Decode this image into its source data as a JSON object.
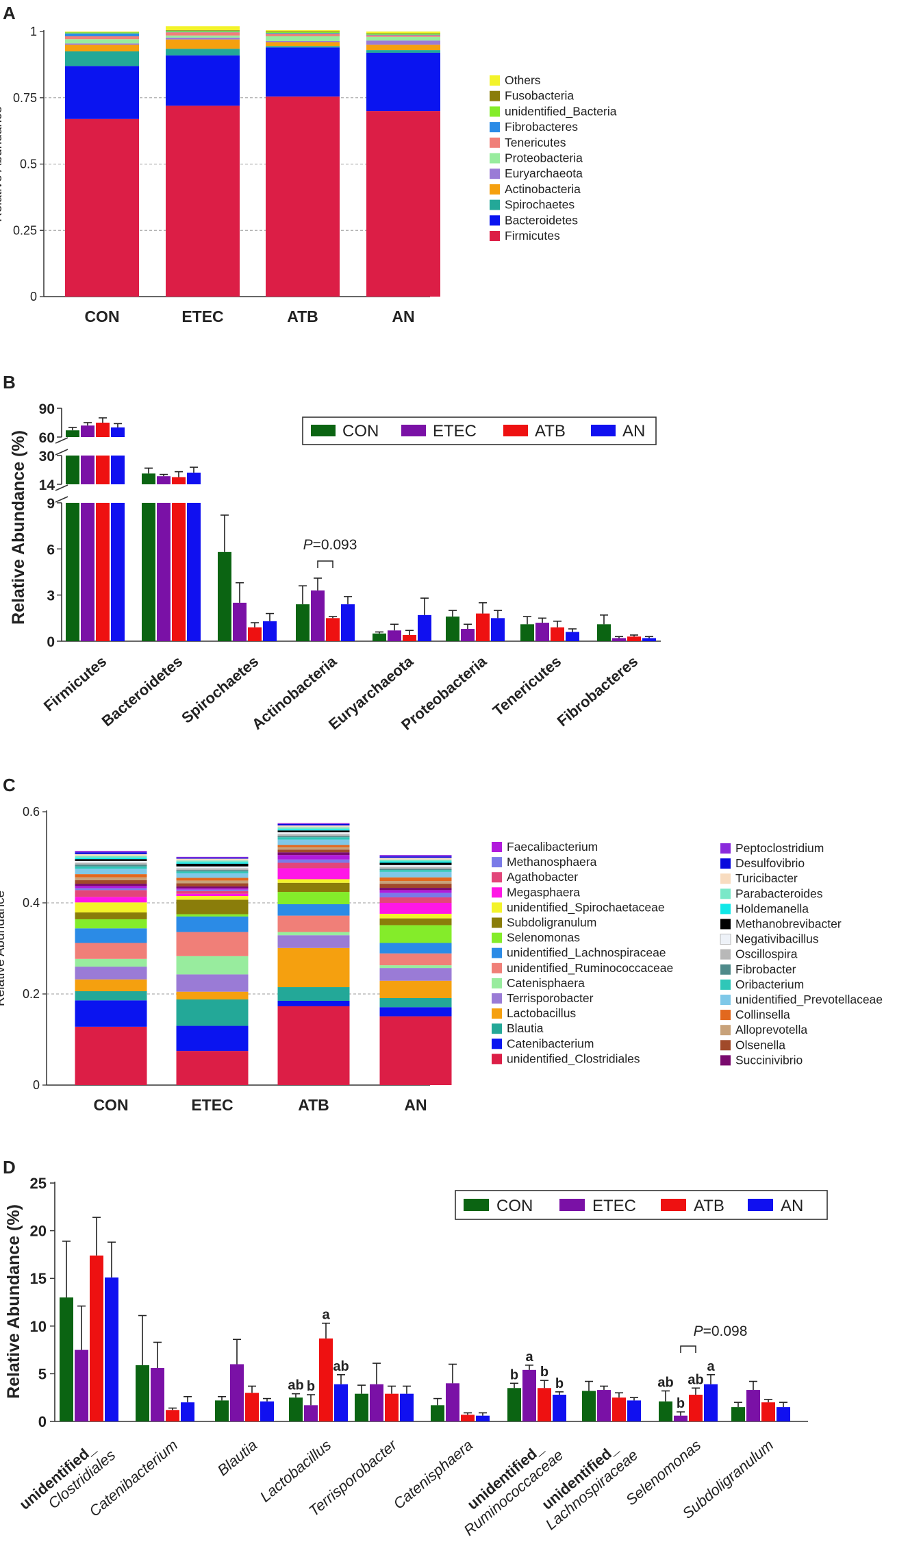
{
  "figure": {
    "panel_labels": [
      "A",
      "B",
      "C",
      "D"
    ]
  },
  "chart_data": [
    {
      "panel": "A",
      "type": "bar",
      "stacked": true,
      "title": "",
      "xlabel": "",
      "ylabel": "Relative Abundance",
      "ylim": [
        0,
        1
      ],
      "yticks": [
        "0",
        "0.25",
        "0.5",
        "0.75",
        "1"
      ],
      "grid": "dashed horizontal",
      "legend_position": "right",
      "categories": [
        "CON",
        "ETEC",
        "ATB",
        "AN"
      ],
      "series": [
        {
          "name": "Firmicutes",
          "color": "#dc1e46",
          "values": [
            0.67,
            0.72,
            0.755,
            0.7
          ]
        },
        {
          "name": "Bacteroidetes",
          "color": "#0a14f0",
          "values": [
            0.2,
            0.19,
            0.185,
            0.22
          ]
        },
        {
          "name": "Spirochaetes",
          "color": "#23a898",
          "values": [
            0.055,
            0.025,
            0.005,
            0.01
          ]
        },
        {
          "name": "Actinobacteria",
          "color": "#f5a00f",
          "values": [
            0.025,
            0.035,
            0.015,
            0.02
          ]
        },
        {
          "name": "Euryarchaeota",
          "color": "#9a7bd6",
          "values": [
            0.005,
            0.007,
            0.004,
            0.016
          ]
        },
        {
          "name": "Proteobacteria",
          "color": "#98ec9e",
          "values": [
            0.016,
            0.008,
            0.018,
            0.014
          ]
        },
        {
          "name": "Tenericutes",
          "color": "#f07f78",
          "values": [
            0.011,
            0.012,
            0.009,
            0.006
          ]
        },
        {
          "name": "Fibrobacteres",
          "color": "#2b8be6",
          "values": [
            0.011,
            0.002,
            0.003,
            0.002
          ]
        },
        {
          "name": "unidentified_Bacteria",
          "color": "#84ec2a",
          "values": [
            0.004,
            0.004,
            0.004,
            0.004
          ]
        },
        {
          "name": "Fusobacteria",
          "color": "#8a7d0a",
          "values": [
            0.001,
            0.002,
            0.003,
            0.002
          ]
        },
        {
          "name": "Others",
          "color": "#f3f32a",
          "values": [
            0.002,
            0.015,
            0.004,
            0.006
          ]
        }
      ],
      "legend": [
        "Others",
        "Fusobacteria",
        "unidentified_Bacteria",
        "Fibrobacteres",
        "Tenericutes",
        "Proteobacteria",
        "Euryarchaeota",
        "Actinobacteria",
        "Spirochaetes",
        "Bacteroidetes",
        "Firmicutes"
      ]
    },
    {
      "panel": "B",
      "type": "bar",
      "grouped": true,
      "broken_axis": true,
      "title": "",
      "xlabel": "",
      "ylabel": "Relative Abundance (%)",
      "ylim": [
        0,
        90
      ],
      "yticks": [
        "0",
        "3",
        "6",
        "9",
        "14",
        "30",
        "60",
        "90"
      ],
      "legend_position": "top-right",
      "groups": [
        "CON",
        "ETEC",
        "ATB",
        "AN"
      ],
      "group_colors": [
        "#0b6412",
        "#7a11a6",
        "#ee1111",
        "#1010f0"
      ],
      "categories": [
        "Firmicutes",
        "Bacteroidetes",
        "Spirochaetes",
        "Actinobacteria",
        "Euryarchaeota",
        "Proteobacteria",
        "Tenericutes",
        "Fibrobacteres"
      ],
      "series": [
        {
          "name": "CON",
          "values": [
            67.0,
            20.0,
            5.8,
            2.4,
            0.5,
            1.6,
            1.1,
            1.1
          ],
          "errors": [
            3.0,
            3.0,
            2.4,
            1.2,
            0.1,
            0.4,
            0.5,
            0.6
          ]
        },
        {
          "name": "ETEC",
          "values": [
            72.0,
            18.5,
            2.5,
            3.3,
            0.7,
            0.8,
            1.2,
            0.2
          ],
          "errors": [
            3.0,
            1.0,
            1.3,
            0.8,
            0.4,
            0.3,
            0.3,
            0.1
          ]
        },
        {
          "name": "ATB",
          "values": [
            75.0,
            18.0,
            0.9,
            1.5,
            0.4,
            1.8,
            0.9,
            0.3
          ],
          "errors": [
            5.0,
            3.0,
            0.3,
            0.1,
            0.3,
            0.7,
            0.4,
            0.1
          ]
        },
        {
          "name": "AN",
          "values": [
            70.0,
            20.5,
            1.3,
            2.4,
            1.7,
            1.5,
            0.6,
            0.2
          ],
          "errors": [
            4.0,
            3.0,
            0.5,
            0.5,
            1.1,
            0.5,
            0.2,
            0.1
          ]
        }
      ],
      "annotation": {
        "prefix": "P",
        "text": "=0.093"
      }
    },
    {
      "panel": "C",
      "type": "bar",
      "stacked": true,
      "title": "",
      "xlabel": "",
      "ylabel": "Relative Abundance",
      "ylim": [
        0,
        0.6
      ],
      "yticks": [
        "0",
        "0.2",
        "0.4",
        "0.6"
      ],
      "grid": "dashed horizontal",
      "legend_position": "right",
      "categories": [
        "CON",
        "ETEC",
        "ATB",
        "AN"
      ],
      "series": [
        {
          "name": "unidentified_Clostridiales",
          "color": "#dc1e46",
          "values": [
            0.128,
            0.075,
            0.173,
            0.151
          ]
        },
        {
          "name": "Catenibacterium",
          "color": "#0a14f0",
          "values": [
            0.058,
            0.055,
            0.012,
            0.02
          ]
        },
        {
          "name": "Blautia",
          "color": "#23a898",
          "values": [
            0.02,
            0.058,
            0.03,
            0.02
          ]
        },
        {
          "name": "Lactobacillus",
          "color": "#f5a00f",
          "values": [
            0.026,
            0.017,
            0.086,
            0.038
          ]
        },
        {
          "name": "Terrisporobacter",
          "color": "#9a7bd6",
          "values": [
            0.028,
            0.038,
            0.028,
            0.028
          ]
        },
        {
          "name": "Catenisphaera",
          "color": "#98ec9e",
          "values": [
            0.017,
            0.04,
            0.007,
            0.006
          ]
        },
        {
          "name": "unidentified_Ruminococcaceae",
          "color": "#f07f78",
          "values": [
            0.035,
            0.053,
            0.036,
            0.026
          ]
        },
        {
          "name": "unidentified_Lachnospiraceae",
          "color": "#2b8be6",
          "values": [
            0.032,
            0.034,
            0.025,
            0.023
          ]
        },
        {
          "name": "Selenomonas",
          "color": "#84ec2a",
          "values": [
            0.02,
            0.005,
            0.027,
            0.039
          ]
        },
        {
          "name": "Subdoligranulum",
          "color": "#8a7d0a",
          "values": [
            0.015,
            0.032,
            0.02,
            0.015
          ]
        },
        {
          "name": "unidentified_Spirochaetaceae",
          "color": "#f3f32a",
          "values": [
            0.022,
            0.008,
            0.008,
            0.01
          ]
        },
        {
          "name": "Megasphaera",
          "color": "#ff17e6",
          "values": [
            0.012,
            0.005,
            0.024,
            0.024
          ]
        },
        {
          "name": "Agathobacter",
          "color": "#e2467a",
          "values": [
            0.015,
            0.006,
            0.012,
            0.012
          ]
        },
        {
          "name": "Methanosphaera",
          "color": "#7a7ae8",
          "values": [
            0.004,
            0.003,
            0.007,
            0.01
          ]
        },
        {
          "name": "Faecalibacterium",
          "color": "#b11adc",
          "values": [
            0.005,
            0.003,
            0.01,
            0.006
          ]
        },
        {
          "name": "Succinivibrio",
          "color": "#7a0a6e",
          "values": [
            0.005,
            0.004,
            0.006,
            0.005
          ]
        },
        {
          "name": "Olsenella",
          "color": "#a14a2a",
          "values": [
            0.008,
            0.007,
            0.006,
            0.009
          ]
        },
        {
          "name": "Alloprevotella",
          "color": "#c8a27a",
          "values": [
            0.006,
            0.006,
            0.005,
            0.006
          ]
        },
        {
          "name": "Collinsella",
          "color": "#e2681e",
          "values": [
            0.007,
            0.006,
            0.005,
            0.008
          ]
        },
        {
          "name": "unidentified_Prevotellaceae",
          "color": "#7fc8e8",
          "values": [
            0.012,
            0.01,
            0.012,
            0.012
          ]
        },
        {
          "name": "Oribacterium",
          "color": "#2fc7b8",
          "values": [
            0.005,
            0.004,
            0.005,
            0.004
          ]
        },
        {
          "name": "Fibrobacter",
          "color": "#4e8a8a",
          "values": [
            0.004,
            0.003,
            0.003,
            0.003
          ]
        },
        {
          "name": "Oscillospira",
          "color": "#b8b8b8",
          "values": [
            0.004,
            0.004,
            0.004,
            0.004
          ]
        },
        {
          "name": "Negativibacillus",
          "color": "#eef2f8",
          "values": [
            0.004,
            0.004,
            0.004,
            0.004
          ]
        },
        {
          "name": "Methanobrevibacter",
          "color": "#000000",
          "values": [
            0.004,
            0.006,
            0.004,
            0.005
          ]
        },
        {
          "name": "Holdemanella",
          "color": "#10e8e8",
          "values": [
            0.003,
            0.003,
            0.003,
            0.003
          ]
        },
        {
          "name": "Parabacteroides",
          "color": "#7ae8c8",
          "values": [
            0.004,
            0.004,
            0.004,
            0.004
          ]
        },
        {
          "name": "Turicibacter",
          "color": "#f8dcc0",
          "values": [
            0.004,
            0.004,
            0.004,
            0.004
          ]
        },
        {
          "name": "Desulfovibrio",
          "color": "#0a0adc",
          "values": [
            0.004,
            0.002,
            0.003,
            0.003
          ]
        },
        {
          "name": "Peptoclostridium",
          "color": "#8a2adc",
          "values": [
            0.003,
            0.002,
            0.002,
            0.003
          ]
        }
      ],
      "legend_col1": [
        "Faecalibacterium",
        "Methanosphaera",
        "Agathobacter",
        "Megasphaera",
        "unidentified_Spirochaetaceae",
        "Subdoligranulum",
        "Selenomonas",
        "unidentified_Lachnospiraceae",
        "unidentified_Ruminococcaceae",
        "Catenisphaera",
        "Terrisporobacter",
        "Lactobacillus",
        "Blautia",
        "Catenibacterium",
        "unidentified_Clostridiales"
      ],
      "legend_col2": [
        "Peptoclostridium",
        "Desulfovibrio",
        "Turicibacter",
        "Parabacteroides",
        "Holdemanella",
        "Methanobrevibacter",
        "Negativibacillus",
        "Oscillospira",
        "Fibrobacter",
        "Oribacterium",
        "unidentified_Prevotellaceae",
        "Collinsella",
        "Alloprevotella",
        "Olsenella",
        "Succinivibrio"
      ]
    },
    {
      "panel": "D",
      "type": "bar",
      "grouped": true,
      "title": "",
      "xlabel": "",
      "ylabel": "Relative Abundance (%)",
      "ylim": [
        0,
        25
      ],
      "yticks": [
        "0",
        "5",
        "10",
        "15",
        "20",
        "25"
      ],
      "legend_position": "top-right",
      "groups": [
        "CON",
        "ETEC",
        "ATB",
        "AN"
      ],
      "group_colors": [
        "#0b6412",
        "#7a11a6",
        "#ee1111",
        "#1010f0"
      ],
      "categories": [
        {
          "bold": "unidentified_",
          "italic": "Clostridiales"
        },
        {
          "bold": "",
          "italic": "Catenibacterium"
        },
        {
          "bold": "",
          "italic": "Blautia"
        },
        {
          "bold": "",
          "italic": "Lactobacillus"
        },
        {
          "bold": "",
          "italic": "Terrisporobacter"
        },
        {
          "bold": "",
          "italic": "Catenisphaera"
        },
        {
          "bold": "unidentified_",
          "italic": "Ruminococcaceae"
        },
        {
          "bold": "unidentified_",
          "italic": "Lachnospiraceae"
        },
        {
          "bold": "",
          "italic": "Selenomonas"
        },
        {
          "bold": "",
          "italic": "Subdoligranulum"
        }
      ],
      "series": [
        {
          "name": "CON",
          "values": [
            13.0,
            5.9,
            2.2,
            2.5,
            2.9,
            1.7,
            3.5,
            3.2,
            2.1,
            1.5
          ],
          "errors": [
            5.9,
            5.2,
            0.4,
            0.4,
            0.9,
            0.7,
            0.5,
            1.0,
            1.1,
            0.5
          ]
        },
        {
          "name": "ETEC",
          "values": [
            7.5,
            5.6,
            6.0,
            1.7,
            3.9,
            4.0,
            5.4,
            3.3,
            0.6,
            3.3
          ],
          "errors": [
            4.6,
            2.7,
            2.6,
            1.1,
            2.2,
            2.0,
            0.5,
            0.4,
            0.4,
            0.9
          ]
        },
        {
          "name": "ATB",
          "values": [
            17.4,
            1.2,
            3.0,
            8.7,
            2.9,
            0.7,
            3.5,
            2.5,
            2.8,
            2.0
          ],
          "errors": [
            4.0,
            0.2,
            0.7,
            1.6,
            0.8,
            0.2,
            0.8,
            0.5,
            0.7,
            0.3
          ]
        },
        {
          "name": "AN",
          "values": [
            15.1,
            2.0,
            2.1,
            3.9,
            2.9,
            0.6,
            2.8,
            2.2,
            3.9,
            1.5
          ],
          "errors": [
            3.7,
            0.6,
            0.3,
            1.0,
            0.8,
            0.3,
            0.3,
            0.3,
            1.0,
            0.5
          ]
        }
      ],
      "significance_letters": {
        "Lactobacillus": [
          "ab",
          "b",
          "a",
          "ab"
        ],
        "Ruminococcaceae": [
          "b",
          "a",
          "b",
          "b"
        ],
        "Selenomonas": [
          "ab",
          "b",
          "ab",
          "a"
        ]
      },
      "annotation": {
        "prefix": "P",
        "text": "=0.098"
      }
    }
  ]
}
